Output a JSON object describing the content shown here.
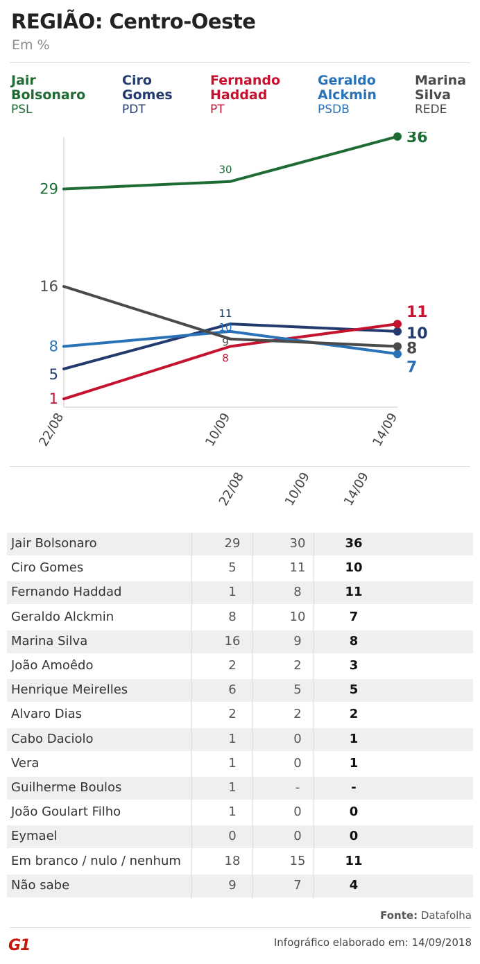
{
  "header": {
    "title": "REGIÃO: Centro-Oeste",
    "subtitle": "Em %"
  },
  "legend": [
    {
      "name_l1": "Jair",
      "name_l2": "Bolsonaro",
      "party": "PSL",
      "color": "#1e6b34"
    },
    {
      "name_l1": "Ciro",
      "name_l2": "Gomes",
      "party": "PDT",
      "color": "#233a6e"
    },
    {
      "name_l1": "Fernando",
      "name_l2": "Haddad",
      "party": "PT",
      "color": "#c4122f"
    },
    {
      "name_l1": "Geraldo",
      "name_l2": "Alckmin",
      "party": "PSDB",
      "color": "#2a72b8"
    },
    {
      "name_l1": "Marina",
      "name_l2": "Silva",
      "party": "REDE",
      "color": "#4a4a4a"
    }
  ],
  "chart_data": {
    "type": "line",
    "x": [
      "22/08",
      "10/09",
      "14/09"
    ],
    "ylim": [
      0,
      45
    ],
    "grid": false,
    "series": [
      {
        "name": "Jair Bolsonaro",
        "values": [
          29,
          30,
          36
        ],
        "color": "#1e6b34"
      },
      {
        "name": "Ciro Gomes",
        "values": [
          5,
          11,
          10
        ],
        "color": "#233a6e"
      },
      {
        "name": "Fernando Haddad",
        "values": [
          1,
          8,
          11
        ],
        "color": "#c4122f"
      },
      {
        "name": "Geraldo Alckmin",
        "values": [
          8,
          10,
          7
        ],
        "color": "#2a72b8"
      },
      {
        "name": "Marina Silva",
        "values": [
          16,
          9,
          8
        ],
        "color": "#4a4a4a"
      }
    ]
  },
  "table": {
    "columns": [
      "22/08",
      "10/09",
      "14/09"
    ],
    "rows": [
      {
        "name": "Jair Bolsonaro",
        "values": [
          "29",
          "30",
          "36"
        ]
      },
      {
        "name": "Ciro Gomes",
        "values": [
          "5",
          "11",
          "10"
        ]
      },
      {
        "name": "Fernando Haddad",
        "values": [
          "1",
          "8",
          "11"
        ]
      },
      {
        "name": "Geraldo Alckmin",
        "values": [
          "8",
          "10",
          "7"
        ]
      },
      {
        "name": "Marina Silva",
        "values": [
          "16",
          "9",
          "8"
        ]
      },
      {
        "name": "João Amoêdo",
        "values": [
          "2",
          "2",
          "3"
        ]
      },
      {
        "name": "Henrique Meirelles",
        "values": [
          "6",
          "5",
          "5"
        ]
      },
      {
        "name": "Alvaro Dias",
        "values": [
          "2",
          "2",
          "2"
        ]
      },
      {
        "name": "Cabo Daciolo",
        "values": [
          "1",
          "0",
          "1"
        ]
      },
      {
        "name": "Vera",
        "values": [
          "1",
          "0",
          "1"
        ]
      },
      {
        "name": "Guilherme Boulos",
        "values": [
          "1",
          "-",
          "-"
        ]
      },
      {
        "name": "João Goulart Filho",
        "values": [
          "1",
          "0",
          "0"
        ]
      },
      {
        "name": "Eymael",
        "values": [
          "0",
          "0",
          "0"
        ]
      },
      {
        "name": "Em branco / nulo / nenhum",
        "values": [
          "18",
          "15",
          "11"
        ]
      },
      {
        "name": "Não sabe",
        "values": [
          "9",
          "7",
          "4"
        ]
      }
    ]
  },
  "footer": {
    "source_label": "Fonte:",
    "source_value": "Datafolha",
    "logo": "G1",
    "credit": "Infográfico elaborado em: 14/09/2018"
  }
}
